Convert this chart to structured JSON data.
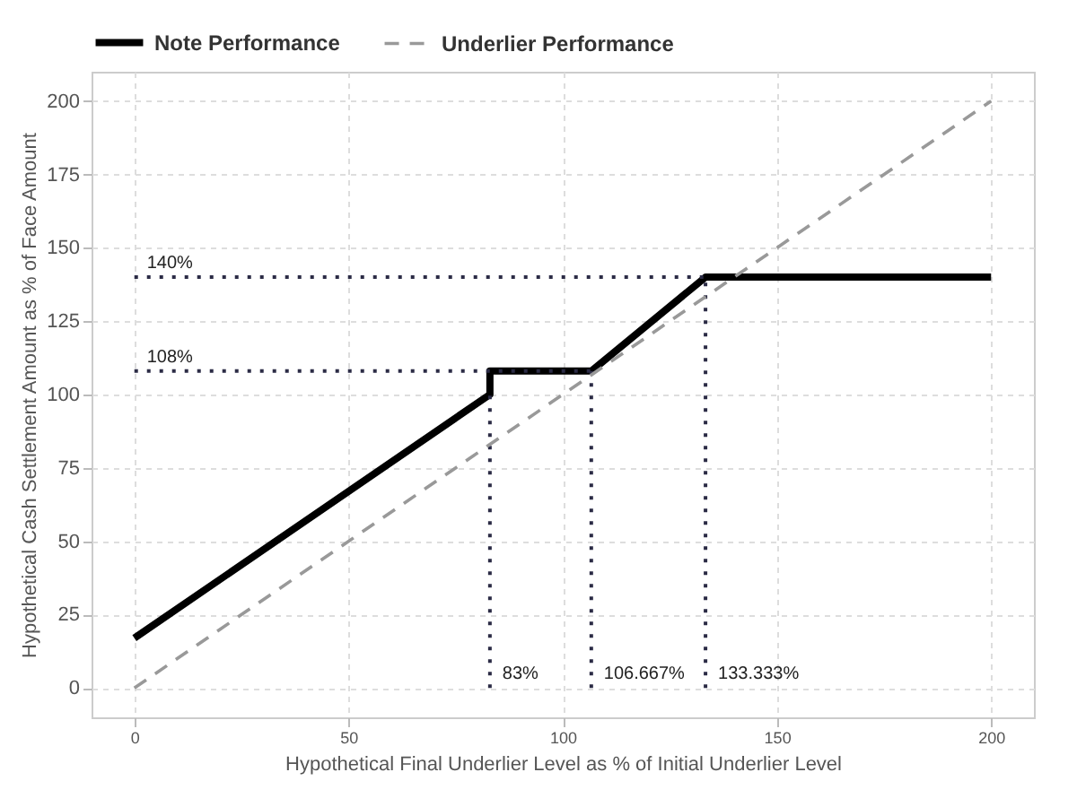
{
  "chart_data": {
    "type": "line",
    "xlabel": "Hypothetical Final Underlier Level as % of Initial Underlier Level",
    "ylabel": "Hypothetical Cash Settlement Amount as % of Face Amount",
    "xlim": [
      -10,
      210
    ],
    "ylim": [
      -10,
      210
    ],
    "xticks": [
      0,
      50,
      100,
      150,
      200
    ],
    "yticks": [
      0,
      25,
      50,
      75,
      100,
      125,
      150,
      175,
      200
    ],
    "grid": true,
    "legend": "top",
    "series": [
      {
        "name": "Note Performance",
        "color": "#000000",
        "line_style": "solid",
        "x": [
          0,
          83,
          83,
          106.667,
          133.333,
          200
        ],
        "values": [
          17,
          100,
          108,
          108,
          140,
          140
        ]
      },
      {
        "name": "Underlier Performance",
        "color": "#999999",
        "line_style": "dashed",
        "x": [
          0,
          200
        ],
        "values": [
          0,
          200
        ]
      },
      {
        "color": "#2b2b45",
        "line_style": "dotted",
        "x": [
          0,
          133.333
        ],
        "values": [
          140,
          140
        ]
      },
      {
        "color": "#2b2b45",
        "line_style": "dotted",
        "x": [
          0,
          106.667
        ],
        "values": [
          108,
          108
        ]
      },
      {
        "color": "#2b2b45",
        "line_style": "dotted",
        "x": [
          83,
          83
        ],
        "values": [
          0,
          100
        ]
      },
      {
        "color": "#2b2b45",
        "line_style": "dotted",
        "x": [
          106.667,
          106.667
        ],
        "values": [
          0,
          108
        ]
      },
      {
        "color": "#2b2b45",
        "line_style": "dotted",
        "x": [
          133.333,
          133.333
        ],
        "values": [
          0,
          140
        ]
      }
    ],
    "annotations": [
      {
        "text": "140%",
        "x": 0,
        "y": 140
      },
      {
        "text": "108%",
        "x": 0,
        "y": 108
      },
      {
        "text": "83%",
        "x": 83,
        "y": 0
      },
      {
        "text": "106.667%",
        "x": 106.667,
        "y": 0
      },
      {
        "text": "133.333%",
        "x": 133.333,
        "y": 0
      }
    ]
  }
}
